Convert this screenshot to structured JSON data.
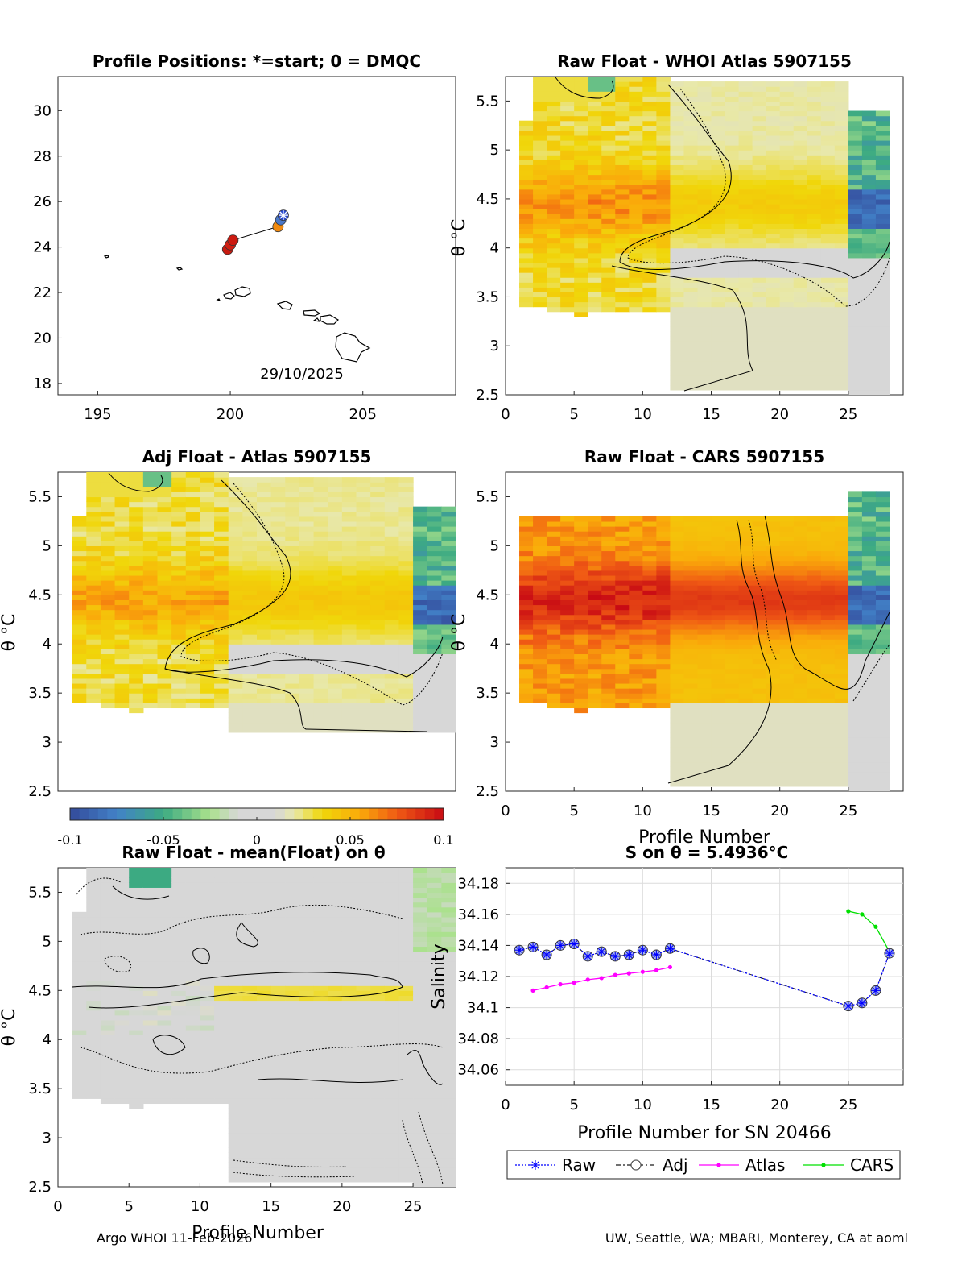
{
  "footer": {
    "left": "Argo WHOI 11-Feb-2026",
    "right": "UW, Seattle, WA; MBARI, Monterey, CA at aoml"
  },
  "colors": {
    "raw": "#0000ff",
    "adj": "#1a1a1a",
    "atlas": "#ff00ff",
    "cars": "#00e000",
    "contour": "#000000",
    "land": "#000000"
  },
  "chart_data": [
    {
      "id": "positions",
      "type": "scatter",
      "title": "Profile Positions: *=start; 0 = DMQC",
      "xlim": [
        193.5,
        208.5
      ],
      "ylim": [
        17.5,
        31.5
      ],
      "xticks": [
        "195",
        "200",
        "205"
      ],
      "yticks": [
        "18",
        "20",
        "22",
        "24",
        "26",
        "28",
        "30"
      ],
      "annotation": "29/10/2025",
      "track": [
        [
          202.0,
          25.4
        ],
        [
          201.9,
          25.2
        ],
        [
          201.8,
          24.9
        ],
        [
          200.1,
          24.3
        ],
        [
          200.0,
          24.1
        ],
        [
          199.9,
          23.9
        ],
        [
          200.0,
          24.0
        ]
      ],
      "points": [
        {
          "lon": 202.0,
          "lat": 25.4,
          "color": "#2a4bd0",
          "label": "start"
        },
        {
          "lon": 201.9,
          "lat": 25.2,
          "color": "#4a78c8"
        },
        {
          "lon": 201.8,
          "lat": 24.9,
          "color": "#f08a10"
        },
        {
          "lon": 200.1,
          "lat": 24.3,
          "color": "#cc1a10"
        },
        {
          "lon": 200.0,
          "lat": 24.1,
          "color": "#d01e12"
        },
        {
          "lon": 199.9,
          "lat": 23.9,
          "color": "#c81a10"
        }
      ]
    },
    {
      "id": "raw-whoi",
      "type": "heatmap",
      "title": "Raw Float - WHOI Atlas  5907155",
      "ylabel": "",
      "xlim": [
        0,
        29
      ],
      "ylim": [
        2.5,
        5.75
      ],
      "xticks": [
        "0",
        "5",
        "10",
        "15",
        "20",
        "25"
      ],
      "yticks": [
        "2.5",
        "3",
        "3.5",
        "4",
        "4.5",
        "5",
        "5.5"
      ]
    },
    {
      "id": "adj-atlas",
      "type": "heatmap",
      "title": "Adj Float - Atlas  5907155",
      "ylabel": "θ °C",
      "xlim": [
        0,
        28
      ],
      "ylim": [
        2.5,
        5.75
      ],
      "xticks": [],
      "yticks": [
        "2.5",
        "3",
        "3.5",
        "4",
        "4.5",
        "5",
        "5.5"
      ]
    },
    {
      "id": "raw-cars",
      "type": "heatmap",
      "title": "Raw Float - CARS  5907155",
      "xlabel": "Profile Number",
      "xlim": [
        0,
        29
      ],
      "ylim": [
        2.5,
        5.75
      ],
      "xticks": [
        "0",
        "5",
        "10",
        "15",
        "20",
        "25"
      ],
      "yticks": [
        "2.5",
        "3",
        "3.5",
        "4",
        "4.5",
        "5",
        "5.5"
      ]
    },
    {
      "id": "colorbar",
      "type": "heatmap",
      "range": [
        -0.1,
        0.1
      ],
      "ticks": [
        "-0.1",
        "-0.05",
        "0",
        "0.05",
        "0.1"
      ]
    },
    {
      "id": "raw-mean",
      "type": "heatmap",
      "title": "Raw Float - mean(Float) on θ",
      "ylabel": "θ °C",
      "xlabel": "Profile Number",
      "xlim": [
        0,
        28
      ],
      "ylim": [
        2.5,
        5.75
      ],
      "xticks": [
        "0",
        "5",
        "10",
        "15",
        "20",
        "25"
      ],
      "yticks": [
        "2.5",
        "3",
        "3.5",
        "4",
        "4.5",
        "5",
        "5.5"
      ]
    },
    {
      "id": "salinity",
      "type": "line",
      "title": "S on θ = 5.4936°C",
      "xlabel": "Profile Number for SN 20466",
      "ylabel": "Salinity",
      "xlim": [
        0,
        29
      ],
      "ylim": [
        34.05,
        34.19
      ],
      "xticks": [
        "0",
        "5",
        "10",
        "15",
        "20",
        "25"
      ],
      "yticks": [
        "34.06",
        "34.08",
        "34.1",
        "34.12",
        "34.14",
        "34.16",
        "34.18"
      ],
      "series": [
        {
          "name": "Raw",
          "x": [
            1,
            2,
            3,
            4,
            5,
            6,
            7,
            8,
            9,
            10,
            11,
            12,
            25,
            26,
            27,
            28
          ],
          "values": [
            34.137,
            34.139,
            34.134,
            34.14,
            34.141,
            34.133,
            34.136,
            34.133,
            34.134,
            34.137,
            34.134,
            34.138,
            34.101,
            34.103,
            34.111,
            34.135
          ]
        },
        {
          "name": "Adj",
          "x": [
            1,
            2,
            3,
            4,
            5,
            6,
            7,
            8,
            9,
            10,
            11,
            12,
            25,
            26,
            27,
            28
          ],
          "values": [
            34.137,
            34.139,
            34.134,
            34.14,
            34.141,
            34.133,
            34.136,
            34.133,
            34.134,
            34.137,
            34.134,
            34.138,
            34.101,
            34.103,
            34.111,
            34.135
          ]
        },
        {
          "name": "Atlas",
          "x": [
            2,
            3,
            4,
            5,
            6,
            7,
            8,
            9,
            10,
            11,
            12
          ],
          "values": [
            34.111,
            34.113,
            34.115,
            34.116,
            34.118,
            34.119,
            34.121,
            34.122,
            34.123,
            34.124,
            34.126
          ]
        },
        {
          "name": "CARS",
          "x": [
            25,
            26,
            27,
            28
          ],
          "values": [
            34.162,
            34.16,
            34.152,
            34.136
          ]
        }
      ]
    }
  ]
}
